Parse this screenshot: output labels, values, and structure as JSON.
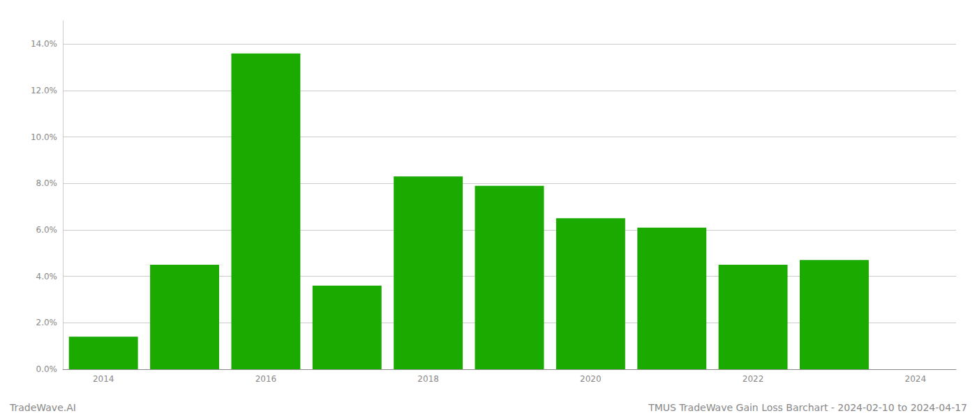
{
  "chart_data": {
    "type": "bar",
    "categories": [
      "2014",
      null,
      "2016",
      null,
      "2018",
      null,
      "2020",
      null,
      "2022",
      null,
      "2024"
    ],
    "values": [
      0.014,
      0.045,
      0.136,
      0.036,
      0.083,
      0.079,
      0.065,
      0.061,
      0.045,
      0.047,
      0.0
    ],
    "color": "#1aaa00",
    "ylim": [
      0,
      0.15
    ],
    "yticks": [
      {
        "value": 0.0,
        "label": "0.0%"
      },
      {
        "value": 0.02,
        "label": "2.0%"
      },
      {
        "value": 0.04,
        "label": "4.0%"
      },
      {
        "value": 0.06,
        "label": "6.0%"
      },
      {
        "value": 0.08,
        "label": "8.0%"
      },
      {
        "value": 0.1,
        "label": "10.0%"
      },
      {
        "value": 0.12,
        "label": "12.0%"
      },
      {
        "value": 0.14,
        "label": "14.0%"
      }
    ],
    "grid": true,
    "annotations": [
      "TradeWave.AI",
      "TMUS TradeWave Gain Loss Barchart - 2024-02-10 to 2024-04-17"
    ]
  }
}
